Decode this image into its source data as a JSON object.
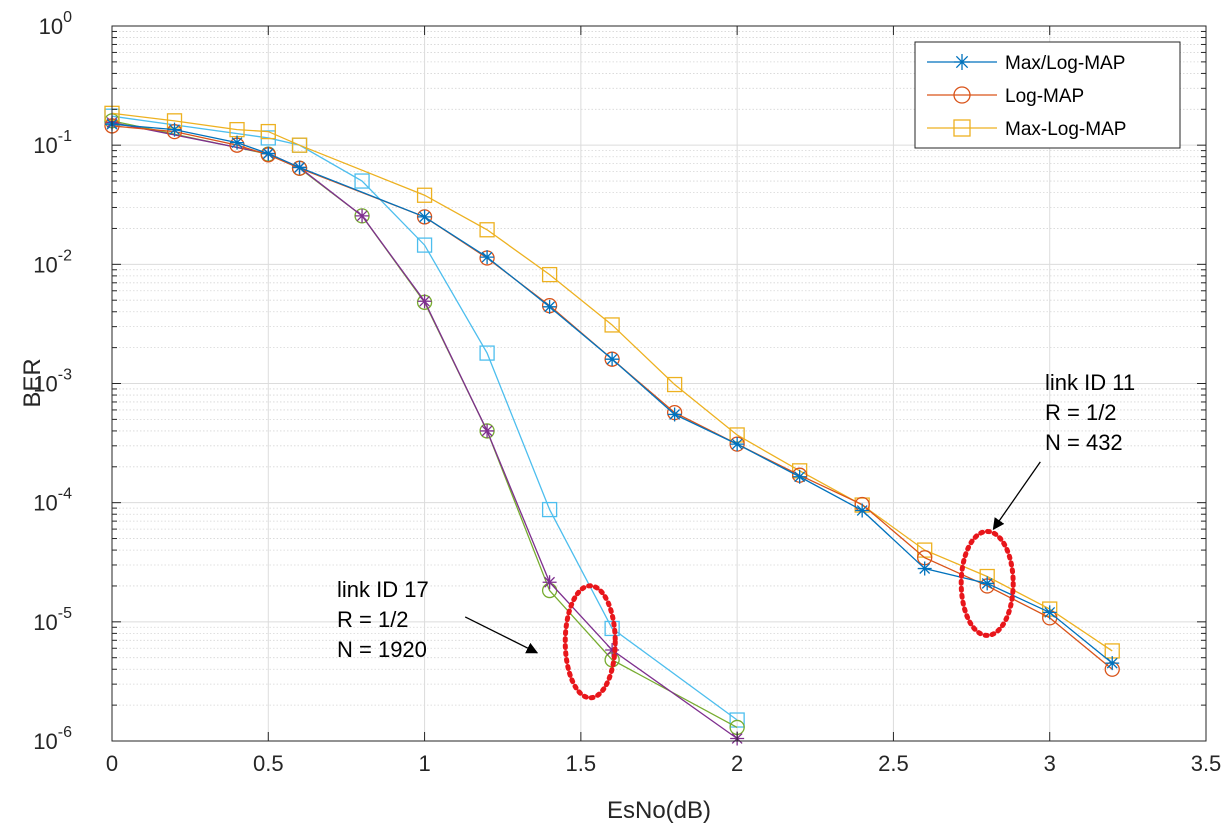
{
  "chart_data": {
    "type": "line",
    "xlabel": "EsNo(dB)",
    "ylabel": "BER",
    "xlim": [
      0,
      3.5
    ],
    "ylim": [
      1e-06,
      1
    ],
    "yscale": "log",
    "grid": true,
    "minor_grid": true,
    "x_ticks": [
      "0",
      "0.5",
      "1",
      "1.5",
      "2",
      "2.5",
      "3",
      "3.5"
    ],
    "y_ticks": [
      {
        "base": "10",
        "exp": "-6"
      },
      {
        "base": "10",
        "exp": "-5"
      },
      {
        "base": "10",
        "exp": "-4"
      },
      {
        "base": "10",
        "exp": "-3"
      },
      {
        "base": "10",
        "exp": "-2"
      },
      {
        "base": "10",
        "exp": "-1"
      },
      {
        "base": "10",
        "exp": "0"
      }
    ],
    "legend_position": "top-right",
    "series": [
      {
        "name": "Max/Log-MAP",
        "group": "link ID 11",
        "marker": "star",
        "color": "#0072BD",
        "in_legend": true,
        "x": [
          0,
          0.2,
          0.4,
          0.5,
          0.6,
          1.0,
          1.2,
          1.4,
          1.6,
          1.8,
          2.0,
          2.2,
          2.4,
          2.6,
          2.8,
          3.0,
          3.2
        ],
        "y": [
          0.15,
          0.135,
          0.105,
          0.085,
          0.065,
          0.025,
          0.0115,
          0.0044,
          0.0016,
          0.00055,
          0.00031,
          0.000165,
          8.6e-05,
          2.8e-05,
          2.1e-05,
          1.2e-05,
          4.5e-06
        ]
      },
      {
        "name": "Log-MAP",
        "group": "link ID 11",
        "marker": "circle",
        "color": "#D95319",
        "in_legend": true,
        "x": [
          0,
          0.2,
          0.4,
          0.5,
          0.6,
          1.0,
          1.2,
          1.4,
          1.6,
          1.8,
          2.0,
          2.2,
          2.4,
          2.6,
          2.8,
          3.0,
          3.2
        ],
        "y": [
          0.145,
          0.13,
          0.1,
          0.083,
          0.064,
          0.025,
          0.0113,
          0.0045,
          0.0016,
          0.00057,
          0.00031,
          0.00017,
          9.65e-05,
          3.45e-05,
          2e-05,
          1.08e-05,
          4e-06
        ]
      },
      {
        "name": "Max-Log-MAP",
        "group": "link ID 11",
        "marker": "square",
        "color": "#EDB120",
        "in_legend": true,
        "x": [
          0,
          0.2,
          0.4,
          0.5,
          0.6,
          1.0,
          1.2,
          1.4,
          1.6,
          1.8,
          2.0,
          2.2,
          2.4,
          2.6,
          2.8,
          3.0,
          3.2
        ],
        "y": [
          0.185,
          0.16,
          0.135,
          0.13,
          0.1,
          0.038,
          0.0195,
          0.0082,
          0.0031,
          0.00098,
          0.00037,
          0.000185,
          9.55e-05,
          4e-05,
          2.4e-05,
          1.28e-05,
          5.7e-06
        ]
      },
      {
        "name": "Max/Log-MAP",
        "group": "link ID 17",
        "marker": "star",
        "color": "#7E2F8E",
        "in_legend": false,
        "x": [
          0,
          0.5,
          0.6,
          0.8,
          1.0,
          1.2,
          1.4,
          1.6,
          2.0
        ],
        "y": [
          0.155,
          0.085,
          0.065,
          0.0255,
          0.0049,
          0.0004,
          2.15e-05,
          5.8e-06,
          1.05e-06
        ]
      },
      {
        "name": "Log-MAP",
        "group": "link ID 17",
        "marker": "circle",
        "color": "#77AC30",
        "in_legend": false,
        "x": [
          0,
          0.5,
          0.6,
          0.8,
          1.0,
          1.2,
          1.4,
          1.6,
          2.0
        ],
        "y": [
          0.16,
          0.084,
          0.064,
          0.0255,
          0.0048,
          0.0004,
          1.83e-05,
          4.8e-06,
          1.3e-06
        ]
      },
      {
        "name": "Max-Log-MAP",
        "group": "link ID 17",
        "marker": "square",
        "color": "#4DBEEE",
        "in_legend": false,
        "x": [
          0,
          0.5,
          0.6,
          0.8,
          1.0,
          1.2,
          1.4,
          1.6,
          2.0
        ],
        "y": [
          0.175,
          0.115,
          0.1,
          0.05,
          0.0145,
          0.0018,
          8.75e-05,
          8.8e-06,
          1.5e-06
        ]
      }
    ],
    "annotations": [
      {
        "id": "link11",
        "lines": [
          "link ID 11",
          "R = 1/2",
          "N = 432"
        ],
        "ellipse_center": [
          2.8,
          2.1e-05
        ],
        "arrow_from": [
          2.97,
          0.00022
        ],
        "arrow_to": [
          2.82,
          6e-05
        ]
      },
      {
        "id": "link17",
        "lines": [
          "link ID 17",
          "R = 1/2",
          "N = 1920"
        ],
        "ellipse_center": [
          1.53,
          6.8e-06
        ],
        "arrow_from": [
          1.13,
          1.1e-05
        ],
        "arrow_to": [
          1.36,
          5.5e-06
        ]
      }
    ],
    "highlight_color": "#E8161B"
  }
}
